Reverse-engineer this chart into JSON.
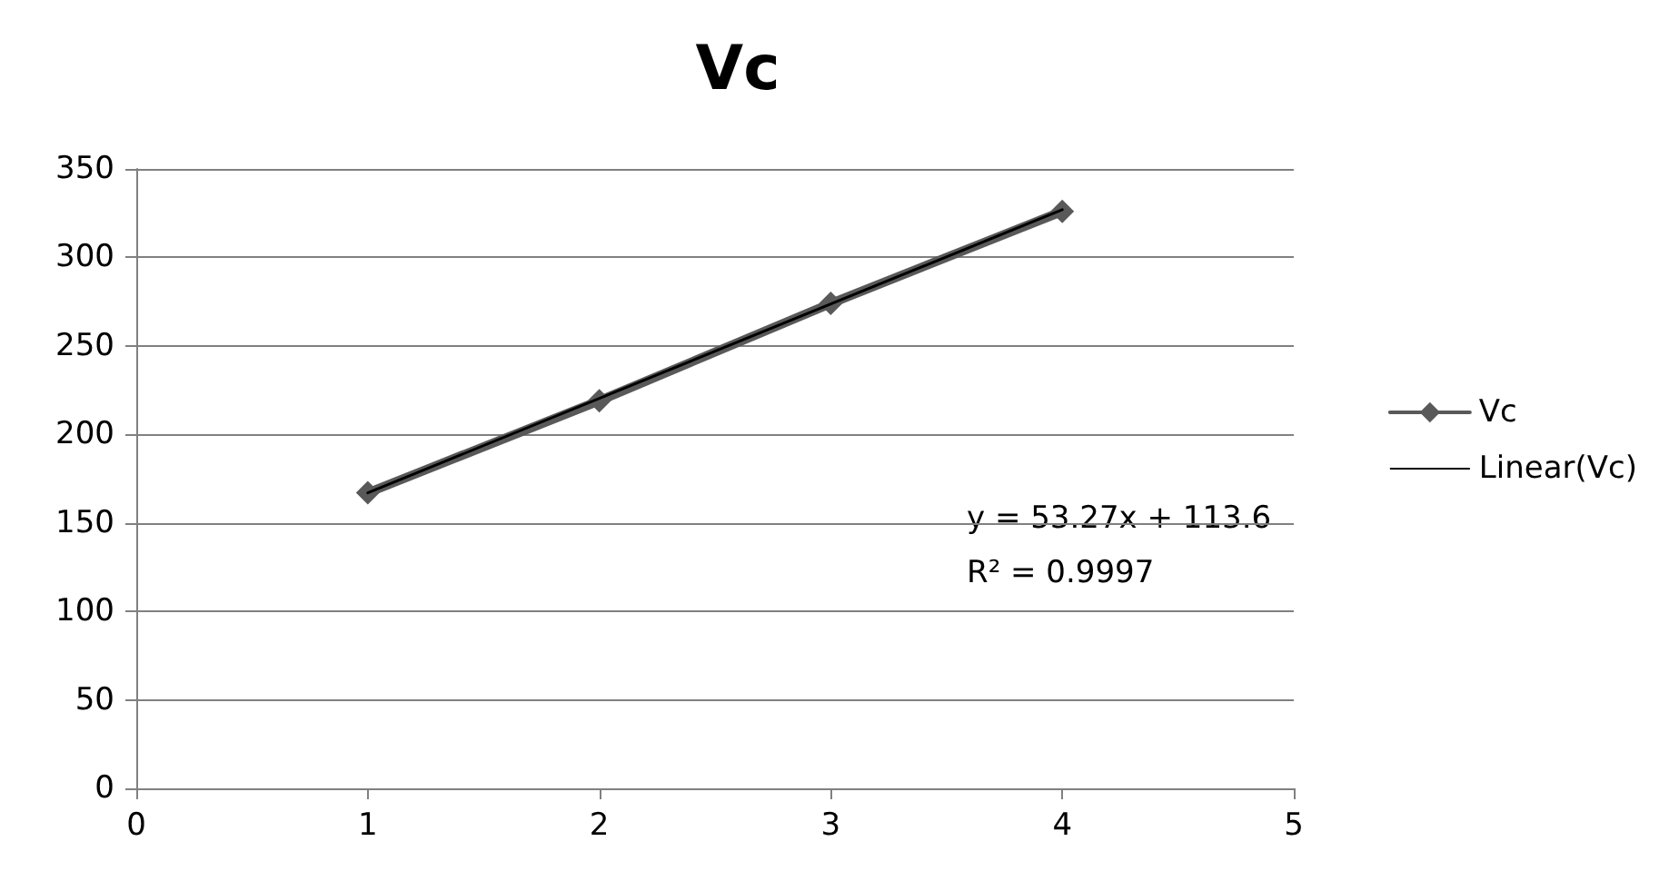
{
  "chart_data": {
    "type": "line",
    "title": "Vc",
    "x": [
      1,
      2,
      3,
      4
    ],
    "series": [
      {
        "name": "Vc",
        "color": "#595959",
        "values": [
          167,
          219,
          274,
          326
        ],
        "marker": "diamond"
      },
      {
        "name": "Linear(Vc)",
        "color": "#000000",
        "x": [
          1,
          4
        ],
        "values": [
          167,
          327
        ],
        "marker": "none"
      }
    ],
    "xlim": [
      0,
      5
    ],
    "xticks": [
      0,
      1,
      2,
      3,
      4,
      5
    ],
    "ylim": [
      0,
      350
    ],
    "yticks": [
      0,
      50,
      100,
      150,
      200,
      250,
      300,
      350
    ],
    "grid": "y",
    "legend": "right",
    "annotations": [
      "y = 53.27x + 113.6",
      "R² = 0.9997"
    ]
  }
}
